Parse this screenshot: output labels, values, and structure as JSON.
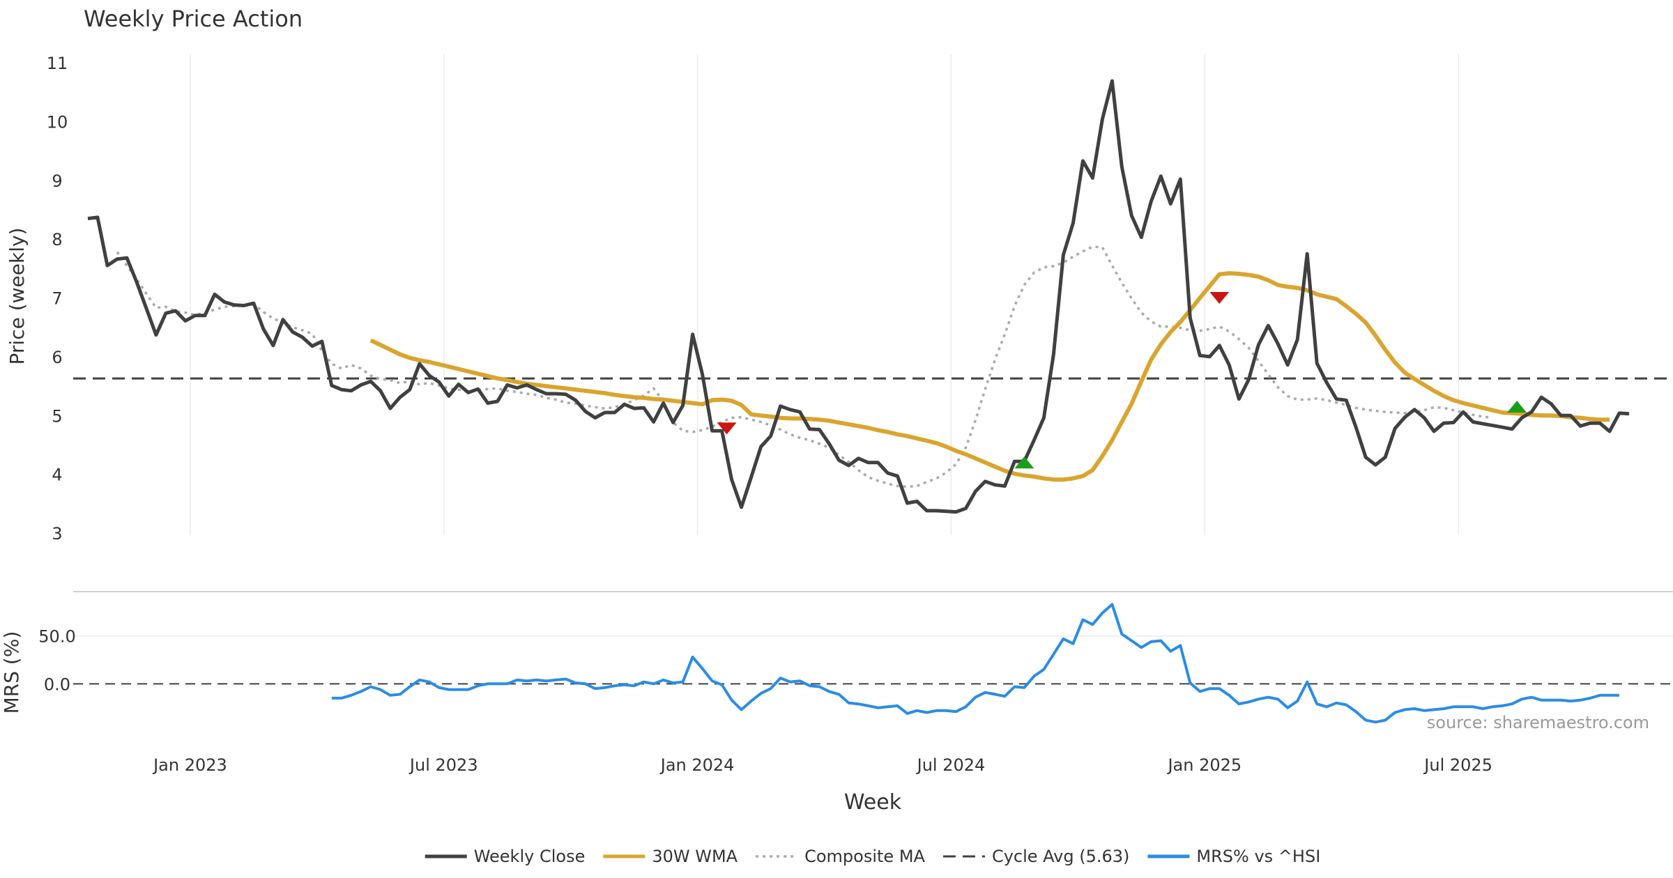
{
  "chart_data": {
    "type": "line",
    "title": "Weekly Price Action",
    "xlabel": "Week",
    "source": "source: sharemaestro.com",
    "x_ticks": [
      "Jan 2023",
      "Jul 2023",
      "Jan 2024",
      "Jul 2024",
      "Jan 2025",
      "Jul 2025"
    ],
    "x_tick_weeks": [
      10.5,
      36.5,
      62.5,
      88.5,
      114.5,
      140.5
    ],
    "week_range": [
      -1.5,
      162.5
    ],
    "price_panel": {
      "ylabel": "Price (weekly)",
      "ylim": [
        3,
        11
      ],
      "y_ticks": [
        3,
        4,
        5,
        6,
        7,
        8,
        9,
        10,
        11
      ],
      "cycle_avg": 5.63,
      "series": [
        {
          "name": "Weekly Close",
          "color": "#404040",
          "start_week": 0,
          "values": [
            8.35,
            8.37,
            7.55,
            7.66,
            7.68,
            7.27,
            6.82,
            6.37,
            6.74,
            6.78,
            6.61,
            6.7,
            6.7,
            7.06,
            6.93,
            6.88,
            6.87,
            6.91,
            6.47,
            6.19,
            6.63,
            6.42,
            6.33,
            6.18,
            6.26,
            5.51,
            5.44,
            5.42,
            5.52,
            5.58,
            5.42,
            5.12,
            5.31,
            5.44,
            5.88,
            5.68,
            5.57,
            5.33,
            5.53,
            5.39,
            5.45,
            5.21,
            5.24,
            5.52,
            5.47,
            5.52,
            5.44,
            5.37,
            5.37,
            5.36,
            5.26,
            5.07,
            4.96,
            5.05,
            5.05,
            5.19,
            5.12,
            5.13,
            4.89,
            5.21,
            4.88,
            5.17,
            6.38,
            5.7,
            4.74,
            4.74,
            3.91,
            3.44,
            3.95,
            4.47,
            4.65,
            5.16,
            5.1,
            5.06,
            4.77,
            4.76,
            4.52,
            4.24,
            4.15,
            4.27,
            4.2,
            4.2,
            4.02,
            3.97,
            3.51,
            3.54,
            3.38,
            3.38,
            3.37,
            3.36,
            3.42,
            3.71,
            3.88,
            3.82,
            3.8,
            4.22,
            4.22,
            4.58,
            4.96,
            6.04,
            7.73,
            8.27,
            9.33,
            9.04,
            10.04,
            10.69,
            9.23,
            8.4,
            8.03,
            8.64,
            9.07,
            8.6,
            9.02,
            6.66,
            6.02,
            6.0,
            6.19,
            5.86,
            5.28,
            5.61,
            6.2,
            6.53,
            6.22,
            5.86,
            6.29,
            7.75,
            5.89,
            5.56,
            5.28,
            5.26,
            4.8,
            4.29,
            4.16,
            4.29,
            4.78,
            4.97,
            5.1,
            4.96,
            4.73,
            4.87,
            4.88,
            5.06,
            4.89,
            4.86,
            4.83,
            4.8,
            4.77,
            4.96,
            5.06,
            5.31,
            5.2,
            5.0,
            5.0,
            4.82,
            4.87,
            4.87,
            4.73,
            5.04,
            5.03
          ]
        },
        {
          "name": "30W WMA",
          "color": "#D9A52E",
          "start_week": 29,
          "values": [
            6.28,
            6.2,
            6.12,
            6.04,
            5.98,
            5.94,
            5.91,
            5.87,
            5.83,
            5.79,
            5.75,
            5.71,
            5.67,
            5.63,
            5.6,
            5.57,
            5.54,
            5.52,
            5.5,
            5.48,
            5.46,
            5.44,
            5.42,
            5.4,
            5.38,
            5.35,
            5.33,
            5.31,
            5.3,
            5.28,
            5.27,
            5.25,
            5.23,
            5.21,
            5.19,
            5.26,
            5.27,
            5.25,
            5.18,
            5.02,
            5.0,
            4.98,
            4.96,
            4.95,
            4.95,
            4.94,
            4.93,
            4.91,
            4.88,
            4.85,
            4.82,
            4.79,
            4.75,
            4.72,
            4.68,
            4.65,
            4.61,
            4.57,
            4.53,
            4.47,
            4.4,
            4.34,
            4.27,
            4.2,
            4.13,
            4.06,
            4.01,
            3.98,
            3.96,
            3.93,
            3.91,
            3.91,
            3.93,
            3.97,
            4.07,
            4.31,
            4.58,
            4.89,
            5.2,
            5.58,
            5.95,
            6.21,
            6.42,
            6.59,
            6.79,
            7.0,
            7.2,
            7.4,
            7.42,
            7.41,
            7.39,
            7.36,
            7.3,
            7.22,
            7.19,
            7.17,
            7.13,
            7.06,
            7.02,
            6.98,
            6.86,
            6.73,
            6.58,
            6.36,
            6.12,
            5.9,
            5.73,
            5.62,
            5.52,
            5.42,
            5.33,
            5.26,
            5.21,
            5.17,
            5.13,
            5.09,
            5.05,
            5.04,
            5.03,
            5.01,
            5.0,
            5.0,
            4.99,
            4.97,
            4.96,
            4.94,
            4.93,
            4.93
          ]
        },
        {
          "name": "Composite MA",
          "color": "#AAAAAA",
          "start_week": 3,
          "values": [
            7.78,
            7.55,
            7.32,
            7.07,
            6.83,
            6.85,
            6.77,
            6.75,
            6.71,
            6.75,
            6.8,
            6.85,
            6.86,
            6.88,
            6.9,
            6.76,
            6.65,
            6.58,
            6.5,
            6.45,
            6.39,
            6.1,
            5.88,
            5.8,
            5.86,
            5.8,
            5.68,
            5.62,
            5.6,
            5.55,
            5.58,
            5.53,
            5.55,
            5.51,
            5.46,
            5.44,
            5.4,
            5.43,
            5.45,
            5.46,
            5.42,
            5.4,
            5.37,
            5.35,
            5.3,
            5.27,
            5.22,
            5.2,
            5.17,
            5.14,
            5.12,
            5.14,
            5.19,
            5.26,
            5.34,
            5.46,
            5.24,
            4.88,
            4.74,
            4.72,
            4.75,
            4.81,
            4.89,
            4.96,
            4.97,
            4.93,
            4.89,
            4.83,
            4.76,
            4.68,
            4.62,
            4.58,
            4.52,
            4.45,
            4.33,
            4.21,
            4.07,
            3.95,
            3.89,
            3.84,
            3.8,
            3.79,
            3.8,
            3.87,
            3.93,
            4.03,
            4.17,
            4.45,
            4.92,
            5.45,
            5.95,
            6.38,
            6.86,
            7.22,
            7.43,
            7.52,
            7.54,
            7.6,
            7.7,
            7.79,
            7.87,
            7.86,
            7.55,
            7.26,
            6.99,
            6.75,
            6.6,
            6.51,
            6.51,
            6.49,
            6.45,
            6.44,
            6.47,
            6.51,
            6.43,
            6.3,
            6.15,
            5.93,
            5.7,
            5.48,
            5.33,
            5.27,
            5.27,
            5.29,
            5.26,
            5.22,
            5.18,
            5.13,
            5.1,
            5.08,
            5.06,
            5.05,
            5.04,
            5.06,
            5.09,
            5.14,
            5.13,
            5.09,
            5.05,
            5.01,
            4.98,
            4.96
          ]
        }
      ],
      "signals": [
        {
          "week": 65.5,
          "value": 4.78,
          "type": "sell",
          "color": "#CC1414"
        },
        {
          "week": 96.0,
          "value": 4.2,
          "type": "buy",
          "color": "#1A9E1A"
        },
        {
          "week": 116.0,
          "value": 7.0,
          "type": "sell",
          "color": "#CC1414"
        },
        {
          "week": 146.5,
          "value": 5.15,
          "type": "buy",
          "color": "#1A9E1A"
        }
      ]
    },
    "mrs_panel": {
      "ylabel": "MRS (%)",
      "ylim": [
        -50,
        92
      ],
      "y_ticks": [
        0,
        50
      ],
      "y_tick_labels": [
        "0.0",
        "50.0"
      ],
      "series": [
        {
          "name": "MRS% vs ^HSI",
          "color": "#2B8CE6",
          "start_week": 25,
          "values": [
            -15,
            -15,
            -12,
            -8,
            -3,
            -6,
            -12,
            -11,
            -3,
            4,
            2,
            -4,
            -6,
            -6,
            -6,
            -2,
            0,
            0,
            0,
            4,
            3,
            4,
            3,
            4,
            5,
            1,
            0,
            -5,
            -4,
            -2,
            -1,
            -2,
            2,
            0,
            4,
            1,
            2,
            28,
            16,
            3,
            -1,
            -17,
            -27,
            -18,
            -10,
            -5,
            6,
            2,
            3,
            -2,
            -3,
            -8,
            -11,
            -20,
            -21,
            -23,
            -25,
            -24,
            -23,
            -31,
            -28,
            -30,
            -28,
            -28,
            -29,
            -24,
            -14,
            -9,
            -11,
            -13,
            -3,
            -4,
            8,
            15,
            31,
            47,
            42,
            67,
            62,
            74,
            83,
            52,
            45,
            38,
            44,
            45,
            34,
            40,
            1,
            -8,
            -5,
            -5,
            -12,
            -21,
            -19,
            -16,
            -14,
            -16,
            -25,
            -18,
            2,
            -21,
            -24,
            -20,
            -22,
            -29,
            -38,
            -40,
            -38,
            -30,
            -27,
            -26,
            -28,
            -27,
            -26,
            -24,
            -24,
            -24,
            -26,
            -24,
            -23,
            -21,
            -16,
            -14,
            -17,
            -17,
            -17,
            -18,
            -17,
            -15,
            -12,
            -12,
            -12
          ]
        }
      ]
    },
    "legend": {
      "position": "bottom-center",
      "entries": [
        {
          "label": "Weekly Close",
          "color": "#404040",
          "style": "solid"
        },
        {
          "label": "30W WMA",
          "color": "#D9A52E",
          "style": "solid"
        },
        {
          "label": "Composite MA",
          "color": "#AAAAAA",
          "style": "dotted"
        },
        {
          "label": "Cycle Avg (5.63)",
          "color": "#404040",
          "style": "dashed"
        },
        {
          "label": "MRS% vs ^HSI",
          "color": "#2B8CE6",
          "style": "solid"
        }
      ]
    }
  }
}
